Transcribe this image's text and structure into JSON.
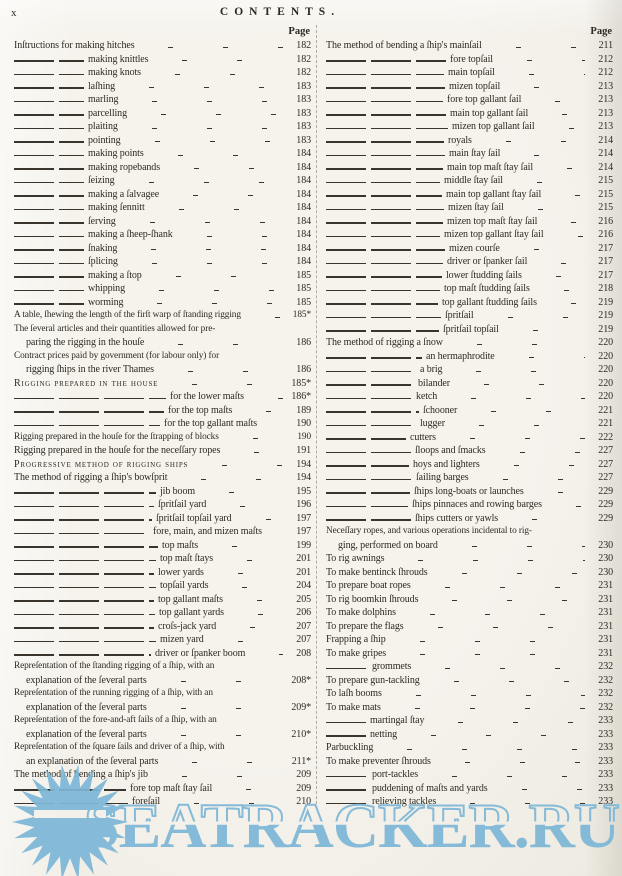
{
  "page": {
    "signature": "x",
    "title": "CONTENTS.",
    "page_col_label": "Page"
  },
  "left_column": [
    {
      "t": "Inſtructions for making hitches",
      "p": "182"
    },
    {
      "d": 70,
      "t": "making knittles",
      "p": "182"
    },
    {
      "d": 70,
      "t": "making knots",
      "p": "182"
    },
    {
      "d": 70,
      "t": "laſhing",
      "p": "183"
    },
    {
      "d": 70,
      "t": "marling",
      "p": "183"
    },
    {
      "d": 70,
      "t": "parcelling",
      "p": "183"
    },
    {
      "d": 70,
      "t": "plaiting",
      "p": "183"
    },
    {
      "d": 70,
      "t": "pointing",
      "p": "183"
    },
    {
      "d": 70,
      "t": "making points",
      "p": "184"
    },
    {
      "d": 70,
      "t": "making ropebands",
      "p": "184"
    },
    {
      "d": 70,
      "t": "ſeizing",
      "p": "184"
    },
    {
      "d": 70,
      "t": "making a ſalvagee",
      "p": "184"
    },
    {
      "d": 70,
      "t": "making ſennitt",
      "p": "184"
    },
    {
      "d": 70,
      "t": "ſerving",
      "p": "184"
    },
    {
      "d": 70,
      "t": "making a ſheep-ſhank",
      "p": "184"
    },
    {
      "d": 70,
      "t": "ſnaking",
      "p": "184"
    },
    {
      "d": 70,
      "t": "ſplicing",
      "p": "184"
    },
    {
      "d": 70,
      "t": "making a ſtop",
      "p": "185"
    },
    {
      "d": 70,
      "t": "whipping",
      "p": "185"
    },
    {
      "d": 70,
      "t": "worming",
      "p": "185"
    },
    {
      "t": "A table, ſhewing the length of the firſt warp of ſtanding rigging",
      "p": "185*"
    },
    {
      "t": "The ſeveral articles and their quantities allowed for pre-"
    },
    {
      "i": 12,
      "t": "paring the rigging in the houſe",
      "p": "186"
    },
    {
      "t": "Contract prices paid by government (for labour only) for"
    },
    {
      "i": 12,
      "t": "rigging ſhips in the river Thames",
      "p": "186"
    },
    {
      "sc": true,
      "t": "Rigging prepared in the house",
      "p": "185*"
    },
    {
      "d": 152,
      "t": "for the lower maſts",
      "p": "186*"
    },
    {
      "d": 150,
      "t": "for the top maſts",
      "p": "189"
    },
    {
      "d": 146,
      "t": "for the top gallant maſts",
      "p": "190"
    },
    {
      "t": "Rigging prepared in the houſe for the ſtrapping of blocks",
      "p": "190"
    },
    {
      "t": "Rigging prepared in the houſe for the neceſſary ropes",
      "p": "191"
    },
    {
      "sc": true,
      "t": "Progressive method of rigging ships",
      "p": "194"
    },
    {
      "t": "The method of rigging a ſhip's bowſprit",
      "p": "194"
    },
    {
      "d": 142,
      "t": "jib boom",
      "p": "195"
    },
    {
      "d": 140,
      "t": "ſpritſail yard",
      "p": "196"
    },
    {
      "d": 138,
      "t": "ſpritſail topſail yard",
      "p": "197"
    },
    {
      "d": 135,
      "t": "fore, main, and mizen maſts",
      "p": "197"
    },
    {
      "d": 144,
      "t": "top maſts",
      "p": "199"
    },
    {
      "d": 142,
      "t": "top maſt ſtays",
      "p": "201"
    },
    {
      "d": 140,
      "t": "lower yards",
      "p": "201"
    },
    {
      "d": 142,
      "t": "topſail yards",
      "p": "204"
    },
    {
      "d": 140,
      "t": "top gallant maſts",
      "p": "205"
    },
    {
      "d": 141,
      "t": "top gallant yards",
      "p": "206"
    },
    {
      "d": 140,
      "t": "croſs-jack yard",
      "p": "207"
    },
    {
      "d": 142,
      "t": "mizen yard",
      "p": "207"
    },
    {
      "d": 137,
      "t": "driver or ſpanker boom",
      "p": "208"
    },
    {
      "t": "Repreſentation of the ſtanding rigging of a ſhip, with an"
    },
    {
      "i": 12,
      "t": "explanation of the ſeveral parts",
      "p": "208*"
    },
    {
      "t": "Repreſentation of the running rigging of a ſhip, with an"
    },
    {
      "i": 12,
      "t": "explanation of the ſeveral parts",
      "p": "209*"
    },
    {
      "t": "Repreſentation of the fore-and-aft ſails of a ſhip, with an"
    },
    {
      "i": 12,
      "t": "explanation of the ſeveral parts",
      "p": "210*"
    },
    {
      "t": "Repreſentation of the ſquare ſails and driver of a ſhip, with"
    },
    {
      "i": 12,
      "t": "an explanation of the ſeveral parts",
      "p": "211*"
    },
    {
      "t": "The method of bending a ſhip's jib",
      "p": "209"
    },
    {
      "d": 112,
      "t": "fore top maſt ſtay ſail",
      "p": "209"
    },
    {
      "d": 114,
      "t": "foreſail",
      "p": "210"
    }
  ],
  "right_column": [
    {
      "t": "The method of bending a ſhip's mainſail",
      "p": "211"
    },
    {
      "d": 120,
      "t": "fore topſail",
      "p": "212"
    },
    {
      "d": 118,
      "t": "main topſail",
      "p": "212"
    },
    {
      "d": 119,
      "t": "mizen topſail",
      "p": "213"
    },
    {
      "d": 117,
      "t": "fore top gallant ſail",
      "p": "213"
    },
    {
      "d": 120,
      "t": "main top gallant ſail",
      "p": "213"
    },
    {
      "d": 122,
      "t": "mizen top gallant ſail",
      "p": "213"
    },
    {
      "d": 118,
      "t": "royals",
      "p": "214"
    },
    {
      "d": 119,
      "t": "main ſtay ſail",
      "p": "214"
    },
    {
      "d": 117,
      "t": "main top maſt ſtay ſail",
      "p": "214"
    },
    {
      "d": 114,
      "t": "middle ſtay ſail",
      "p": "215"
    },
    {
      "d": 116,
      "t": "main top gallant ſtay ſail",
      "p": "215"
    },
    {
      "d": 118,
      "t": "mizen ſtay ſail",
      "p": "215"
    },
    {
      "d": 117,
      "t": "mizen top maſt ſtay ſail",
      "p": "216"
    },
    {
      "d": 114,
      "t": "mizen top gallant ſtay ſail",
      "p": "216"
    },
    {
      "d": 119,
      "t": "mizen courſe",
      "p": "217"
    },
    {
      "d": 117,
      "t": "driver or ſpanker ſail",
      "p": "217"
    },
    {
      "d": 116,
      "t": "lower ſtudding ſails",
      "p": "217"
    },
    {
      "d": 114,
      "t": "top maſt ſtudding ſails",
      "p": "218"
    },
    {
      "d": 112,
      "t": "top gallant ſtudding ſails",
      "p": "219"
    },
    {
      "d": 115,
      "t": "ſpritſail",
      "p": "219"
    },
    {
      "d": 113,
      "t": "ſpritſail topſail",
      "p": "219"
    },
    {
      "t": "The method of rigging a ſnow",
      "p": "220"
    },
    {
      "d": 96,
      "t": "an hermaphrodite",
      "p": "220"
    },
    {
      "d": 90,
      "t": "a brig",
      "p": "220"
    },
    {
      "d": 88,
      "t": "bilander",
      "p": "220"
    },
    {
      "d": 86,
      "t": "ketch",
      "p": "220"
    },
    {
      "d": 93,
      "t": "ſchooner",
      "p": "221"
    },
    {
      "d": 90,
      "t": "lugger",
      "p": "221"
    },
    {
      "d": 80,
      "t": "cutters",
      "p": "222"
    },
    {
      "d": 85,
      "t": "ſloops and ſmacks",
      "p": "227"
    },
    {
      "d": 83,
      "t": "hoys and lighters",
      "p": "227"
    },
    {
      "d": 86,
      "t": "ſailing barges",
      "p": "227"
    },
    {
      "d": 84,
      "t": "ſhips long-boats or launches",
      "p": "229"
    },
    {
      "d": 82,
      "t": "ſhips pinnaces and rowing barges",
      "p": "229"
    },
    {
      "d": 85,
      "t": "ſhips cutters or yawls",
      "p": "229"
    },
    {
      "t": "Neceſſary ropes, and various operations incidental to rig-"
    },
    {
      "i": 12,
      "t": "ging, performed on board",
      "p": "230"
    },
    {
      "t": "To rig awnings",
      "p": "230"
    },
    {
      "t": "To make bentinck ſhrouds",
      "p": "230"
    },
    {
      "t": "To prepare boat ropes",
      "p": "231"
    },
    {
      "t": "To rig boomkin ſhrouds",
      "p": "231"
    },
    {
      "t": "To make dolphins",
      "p": "231"
    },
    {
      "t": "To prepare the flags",
      "p": "231"
    },
    {
      "t": "Frapping a ſhip",
      "p": "231"
    },
    {
      "t": "To make gripes",
      "p": "231"
    },
    {
      "d": 42,
      "t": "grommets",
      "p": "232"
    },
    {
      "t": "To prepare gun-tackling",
      "p": "232"
    },
    {
      "t": "To laſh booms",
      "p": "232"
    },
    {
      "t": "To make mats",
      "p": "232"
    },
    {
      "d": 40,
      "t": "martingal ſtay",
      "p": "233"
    },
    {
      "d": 40,
      "t": "netting",
      "p": "233"
    },
    {
      "t": "Parbuckling",
      "p": "233"
    },
    {
      "t": "To make preventer ſhrouds",
      "p": "233"
    },
    {
      "d": 42,
      "t": "port-tackles",
      "p": "233"
    },
    {
      "d": 42,
      "t": "puddening of maſts and yards",
      "p": "233"
    },
    {
      "d": 42,
      "t": "relieving tackles",
      "p": "233"
    }
  ],
  "watermark": {
    "text": "SEATRACKER.RU",
    "color": "#7db7d7",
    "icon": "sunburst-icon"
  }
}
